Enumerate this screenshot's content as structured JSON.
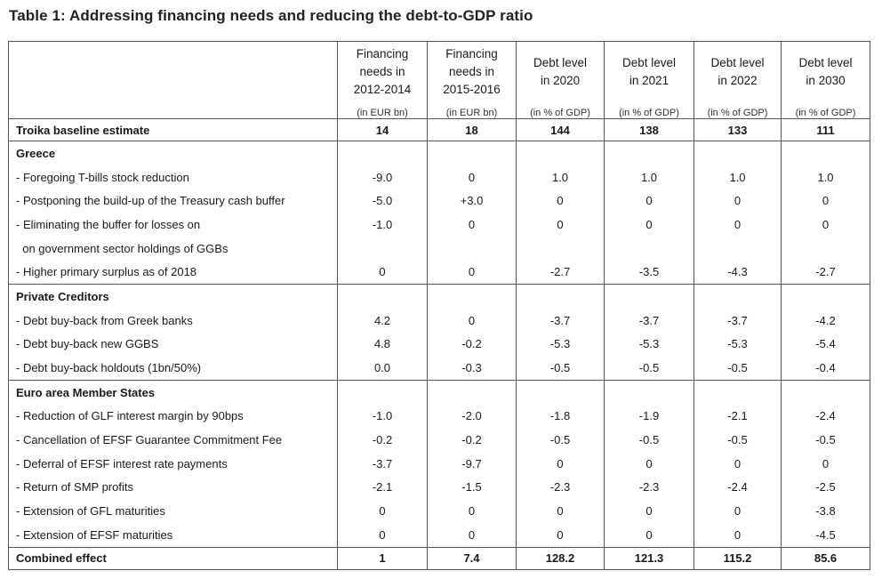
{
  "title": "Table 1: Addressing financing needs and reducing the debt-to-GDP ratio",
  "columns": [
    {
      "line1": "Financing",
      "line2": "needs in",
      "line3": "2012-2014",
      "unit": "(in EUR bn)"
    },
    {
      "line1": "Financing",
      "line2": "needs in",
      "line3": "2015-2016",
      "unit": "(in EUR bn)"
    },
    {
      "line1": "Debt level",
      "line2": "in 2020",
      "line3": "",
      "unit": "(in % of GDP)"
    },
    {
      "line1": "Debt level",
      "line2": "in 2021",
      "line3": "",
      "unit": "(in % of GDP)"
    },
    {
      "line1": "Debt level",
      "line2": "in 2022",
      "line3": "",
      "unit": "(in % of GDP)"
    },
    {
      "line1": "Debt level",
      "line2": "in 2030",
      "line3": "",
      "unit": "(in % of GDP)"
    }
  ],
  "baseline": {
    "label": "Troika baseline estimate",
    "values": [
      "14",
      "18",
      "144",
      "138",
      "133",
      "111"
    ]
  },
  "sections": [
    {
      "name": "Greece",
      "rows": [
        {
          "label": "- Foregoing T-bills stock reduction",
          "values": [
            "-9.0",
            "0",
            "1.0",
            "1.0",
            "1.0",
            "1.0"
          ]
        },
        {
          "label": "- Postponing the build-up of the Treasury cash buffer",
          "values": [
            "-5.0",
            "+3.0",
            "0",
            "0",
            "0",
            "0"
          ]
        },
        {
          "label": "- Eliminating the buffer for losses on",
          "values": [
            "-1.0",
            "0",
            "0",
            "0",
            "0",
            "0"
          ]
        },
        {
          "label": "  on government sector holdings of GGBs",
          "values": [
            "",
            "",
            "",
            "",
            "",
            ""
          ]
        },
        {
          "label": "- Higher primary surplus as of 2018",
          "values": [
            "0",
            "0",
            "-2.7",
            "-3.5",
            "-4.3",
            "-2.7"
          ]
        }
      ]
    },
    {
      "name": "Private Creditors",
      "rows": [
        {
          "label": "- Debt buy-back from Greek banks",
          "values": [
            "4.2",
            "0",
            "-3.7",
            "-3.7",
            "-3.7",
            "-4.2"
          ]
        },
        {
          "label": "- Debt buy-back new GGBS",
          "values": [
            "4.8",
            "-0.2",
            "-5.3",
            "-5.3",
            "-5.3",
            "-5.4"
          ]
        },
        {
          "label": "- Debt buy-back holdouts (1bn/50%)",
          "values": [
            "0.0",
            "-0.3",
            "-0.5",
            "-0.5",
            "-0.5",
            "-0.4"
          ]
        }
      ]
    },
    {
      "name": "Euro area Member States",
      "rows": [
        {
          "label": "- Reduction of GLF interest margin by 90bps",
          "values": [
            "-1.0",
            "-2.0",
            "-1.8",
            "-1.9",
            "-2.1",
            "-2.4"
          ]
        },
        {
          "label": "- Cancellation of EFSF Guarantee Commitment Fee",
          "values": [
            "-0.2",
            "-0.2",
            "-0.5",
            "-0.5",
            "-0.5",
            "-0.5"
          ]
        },
        {
          "label": "- Deferral of EFSF interest rate payments",
          "values": [
            "-3.7",
            "-9.7",
            "0",
            "0",
            "0",
            "0"
          ]
        },
        {
          "label": "- Return of SMP profits",
          "values": [
            "-2.1",
            "-1.5",
            "-2.3",
            "-2.3",
            "-2.4",
            "-2.5"
          ]
        },
        {
          "label": "- Extension of GFL maturities",
          "values": [
            "0",
            "0",
            "0",
            "0",
            "0",
            "-3.8"
          ]
        },
        {
          "label": "- Extension of EFSF maturities",
          "values": [
            "0",
            "0",
            "0",
            "0",
            "0",
            "-4.5"
          ]
        }
      ]
    }
  ],
  "combined": {
    "label": "Combined effect",
    "values": [
      "1",
      "7.4",
      "128.2",
      "121.3",
      "115.2",
      "85.6"
    ]
  }
}
